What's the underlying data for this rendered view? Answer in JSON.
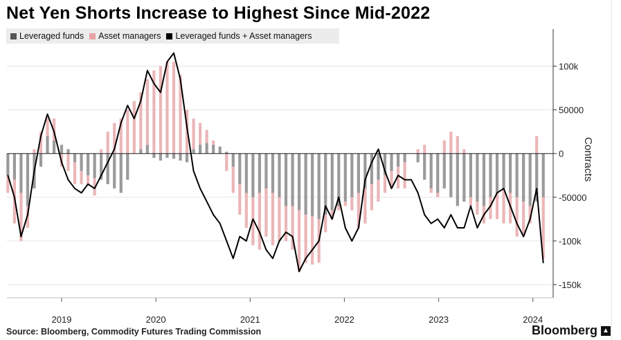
{
  "chart_data": {
    "type": "bar",
    "title": "Net Yen Shorts Increase to Highest Since Mid-2022",
    "ylabel": "Contracts",
    "ylim": [
      -165000,
      140000
    ],
    "xlim": [
      2018.42,
      2024.2
    ],
    "grid": true,
    "legend_position": "top-left",
    "y_ticks": [
      100000,
      50000,
      0,
      -50000,
      -100000,
      -150000
    ],
    "y_tick_labels": [
      "100k",
      "50000",
      "0",
      "-50000",
      "-100k",
      "-150k"
    ],
    "x_tick_labels": [
      "2019",
      "2020",
      "2021",
      "2022",
      "2023",
      "2024"
    ],
    "x_tick_positions": [
      2019,
      2020,
      2021,
      2022,
      2023,
      2024
    ],
    "source": "Source: Bloomberg, Commodity Futures Trading Commission",
    "brand": "Bloomberg",
    "colors": {
      "leveraged": "#9a9a9a",
      "asset": "#ebb6b8",
      "combined": "#000000",
      "legend_leveraged": "#555555",
      "legend_asset": "#e8a3a6"
    },
    "series": [
      {
        "name": "Leveraged funds",
        "x": [
          2018.43,
          2018.5,
          2018.57,
          2018.64,
          2018.71,
          2018.78,
          2018.85,
          2018.92,
          2019.0,
          2019.07,
          2019.14,
          2019.21,
          2019.28,
          2019.35,
          2019.42,
          2019.49,
          2019.56,
          2019.63,
          2019.7,
          2019.77,
          2019.84,
          2019.91,
          2019.98,
          2020.05,
          2020.12,
          2020.19,
          2020.26,
          2020.33,
          2020.4,
          2020.47,
          2020.54,
          2020.61,
          2020.68,
          2020.75,
          2020.82,
          2020.89,
          2020.96,
          2021.03,
          2021.1,
          2021.17,
          2021.24,
          2021.31,
          2021.38,
          2021.45,
          2021.52,
          2021.59,
          2021.66,
          2021.73,
          2021.8,
          2021.87,
          2021.94,
          2022.01,
          2022.08,
          2022.15,
          2022.22,
          2022.29,
          2022.36,
          2022.43,
          2022.5,
          2022.57,
          2022.64,
          2022.71,
          2022.78,
          2022.85,
          2022.92,
          2022.99,
          2023.06,
          2023.13,
          2023.2,
          2023.27,
          2023.34,
          2023.41,
          2023.48,
          2023.55,
          2023.62,
          2023.69,
          2023.76,
          2023.83,
          2023.9,
          2023.97,
          2024.04,
          2024.11
        ],
        "values": [
          -25000,
          -30000,
          -45000,
          -60000,
          -40000,
          -15000,
          20000,
          15000,
          10000,
          5000,
          -10000,
          -20000,
          -25000,
          -28000,
          -30000,
          -35000,
          -40000,
          -45000,
          -30000,
          0,
          5000,
          10000,
          -5000,
          -8000,
          -5000,
          -6000,
          -8000,
          -10000,
          5000,
          10000,
          12000,
          10000,
          8000,
          2000,
          -15000,
          -35000,
          -45000,
          -50000,
          -45000,
          -40000,
          -45000,
          -50000,
          -60000,
          -60000,
          -65000,
          -70000,
          -72000,
          -75000,
          -70000,
          -65000,
          -60000,
          -55000,
          -50000,
          -45000,
          -40000,
          -35000,
          -30000,
          -25000,
          -20000,
          -15000,
          -10000,
          0,
          -10000,
          -30000,
          -40000,
          -45000,
          -40000,
          -50000,
          -60000,
          -55000,
          -50000,
          -55000,
          -60000,
          -50000,
          -45000,
          -40000,
          -45000,
          -50000,
          -55000,
          -60000,
          -55000,
          -50000
        ]
      },
      {
        "name": "Asset managers",
        "x": [
          2018.43,
          2018.5,
          2018.57,
          2018.64,
          2018.71,
          2018.78,
          2018.85,
          2018.92,
          2019.0,
          2019.07,
          2019.14,
          2019.21,
          2019.28,
          2019.35,
          2019.42,
          2019.49,
          2019.56,
          2019.63,
          2019.7,
          2019.77,
          2019.84,
          2019.91,
          2019.98,
          2020.05,
          2020.12,
          2020.19,
          2020.26,
          2020.33,
          2020.4,
          2020.47,
          2020.54,
          2020.61,
          2020.68,
          2020.75,
          2020.82,
          2020.89,
          2020.96,
          2021.03,
          2021.1,
          2021.17,
          2021.24,
          2021.31,
          2021.38,
          2021.45,
          2021.52,
          2021.59,
          2021.66,
          2021.73,
          2021.8,
          2021.87,
          2021.94,
          2022.01,
          2022.08,
          2022.15,
          2022.22,
          2022.29,
          2022.36,
          2022.43,
          2022.5,
          2022.57,
          2022.64,
          2022.71,
          2022.78,
          2022.85,
          2022.92,
          2022.99,
          2023.06,
          2023.13,
          2023.2,
          2023.27,
          2023.34,
          2023.41,
          2023.48,
          2023.55,
          2023.62,
          2023.69,
          2023.76,
          2023.83,
          2023.9,
          2023.97,
          2024.04,
          2024.11
        ],
        "values": [
          -20000,
          -50000,
          -55000,
          -25000,
          5000,
          25000,
          20000,
          25000,
          -15000,
          -20000,
          -25000,
          -15000,
          -10000,
          -20000,
          5000,
          25000,
          35000,
          40000,
          50000,
          60000,
          65000,
          75000,
          95000,
          100000,
          105000,
          105000,
          90000,
          50000,
          35000,
          25000,
          15000,
          5000,
          0,
          -20000,
          -30000,
          -35000,
          -40000,
          -55000,
          -65000,
          -55000,
          -60000,
          -50000,
          -40000,
          -50000,
          -70000,
          -55000,
          -55000,
          -50000,
          -20000,
          -10000,
          -5000,
          -5000,
          -15000,
          -40000,
          -40000,
          -30000,
          -25000,
          -20000,
          -20000,
          -25000,
          -30000,
          0,
          5000,
          10000,
          -5000,
          -5000,
          15000,
          25000,
          20000,
          5000,
          -10000,
          -15000,
          -20000,
          -25000,
          -30000,
          -40000,
          -35000,
          -45000,
          -40000,
          -20000,
          20000,
          -70000
        ]
      },
      {
        "name": "Leveraged funds + Asset managers",
        "x": [
          2018.43,
          2018.5,
          2018.57,
          2018.64,
          2018.71,
          2018.78,
          2018.85,
          2018.92,
          2019.0,
          2019.07,
          2019.14,
          2019.21,
          2019.28,
          2019.35,
          2019.42,
          2019.49,
          2019.56,
          2019.63,
          2019.7,
          2019.77,
          2019.84,
          2019.91,
          2019.98,
          2020.05,
          2020.12,
          2020.19,
          2020.26,
          2020.33,
          2020.4,
          2020.47,
          2020.54,
          2020.61,
          2020.68,
          2020.75,
          2020.82,
          2020.89,
          2020.96,
          2021.03,
          2021.1,
          2021.17,
          2021.24,
          2021.31,
          2021.38,
          2021.45,
          2021.52,
          2021.59,
          2021.66,
          2021.73,
          2021.8,
          2021.87,
          2021.94,
          2022.01,
          2022.08,
          2022.15,
          2022.22,
          2022.29,
          2022.36,
          2022.43,
          2022.5,
          2022.57,
          2022.64,
          2022.71,
          2022.78,
          2022.85,
          2022.92,
          2022.99,
          2023.06,
          2023.13,
          2023.2,
          2023.27,
          2023.34,
          2023.41,
          2023.48,
          2023.55,
          2023.62,
          2023.69,
          2023.76,
          2023.83,
          2023.9,
          2023.97,
          2024.04,
          2024.11
        ],
        "values": [
          -25000,
          -50000,
          -95000,
          -70000,
          -20000,
          20000,
          45000,
          25000,
          -10000,
          -30000,
          -40000,
          -45000,
          -35000,
          -40000,
          -25000,
          -10000,
          5000,
          35000,
          55000,
          40000,
          60000,
          95000,
          80000,
          70000,
          105000,
          115000,
          85000,
          30000,
          -20000,
          -40000,
          -55000,
          -70000,
          -80000,
          -100000,
          -120000,
          -95000,
          -100000,
          -75000,
          -90000,
          -110000,
          -120000,
          -100000,
          -90000,
          -95000,
          -135000,
          -120000,
          -110000,
          -100000,
          -60000,
          -75000,
          -50000,
          -85000,
          -100000,
          -85000,
          -30000,
          -10000,
          5000,
          -20000,
          -40000,
          -25000,
          -30000,
          -30000,
          -45000,
          -70000,
          -80000,
          -75000,
          -85000,
          -70000,
          -85000,
          -85000,
          -60000,
          -85000,
          -70000,
          -60000,
          -45000,
          -40000,
          -60000,
          -80000,
          -95000,
          -75000,
          -40000,
          -125000
        ]
      }
    ]
  }
}
